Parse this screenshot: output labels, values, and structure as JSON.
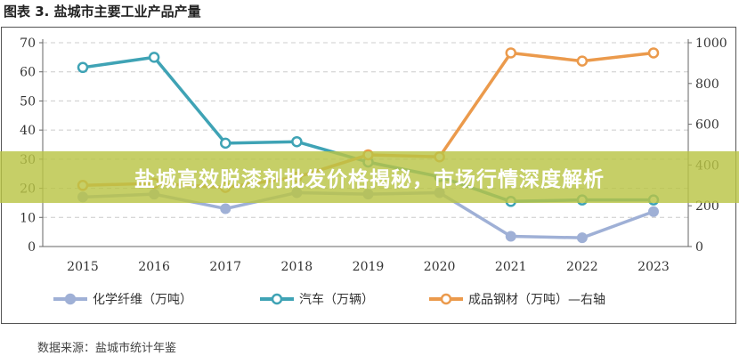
{
  "chart_data": {
    "type": "line",
    "title": "图表 3. 盐城市主要工业产品产量",
    "categories": [
      "2015",
      "2016",
      "2017",
      "2018",
      "2019",
      "2020",
      "2021",
      "2022",
      "2023"
    ],
    "left_axis": {
      "ylim": [
        0,
        70
      ],
      "ticks": [
        "0",
        "10",
        "20",
        "30",
        "40",
        "50",
        "60",
        "70"
      ]
    },
    "right_axis": {
      "ylim": [
        0,
        1000
      ],
      "ticks": [
        "0",
        "200",
        "400",
        "600",
        "800",
        "1000"
      ]
    },
    "series": [
      {
        "name": "化学纤维（万吨）",
        "axis": "left",
        "color": "#9fb0d6",
        "marker": "filled",
        "values": [
          17,
          18,
          13,
          18.5,
          18,
          18.5,
          3.5,
          3,
          12
        ]
      },
      {
        "name": "汽车（万辆）",
        "axis": "left",
        "color": "#3fa3b5",
        "marker": "hollow",
        "values": [
          61.5,
          65,
          35.5,
          36,
          29,
          24,
          15.5,
          16,
          16
        ]
      },
      {
        "name": "成品钢材（万吨）—右轴",
        "axis": "right",
        "color": "#eb9a4c",
        "marker": "hollow",
        "values": [
          300,
          310,
          290,
          340,
          450,
          440,
          950,
          910,
          950
        ]
      }
    ],
    "grid": true,
    "legend": "bottom"
  },
  "source": "数据来源：盐城市统计年鉴",
  "banner": "盐城高效脱漆剂批发价格揭秘，市场行情深度解析"
}
